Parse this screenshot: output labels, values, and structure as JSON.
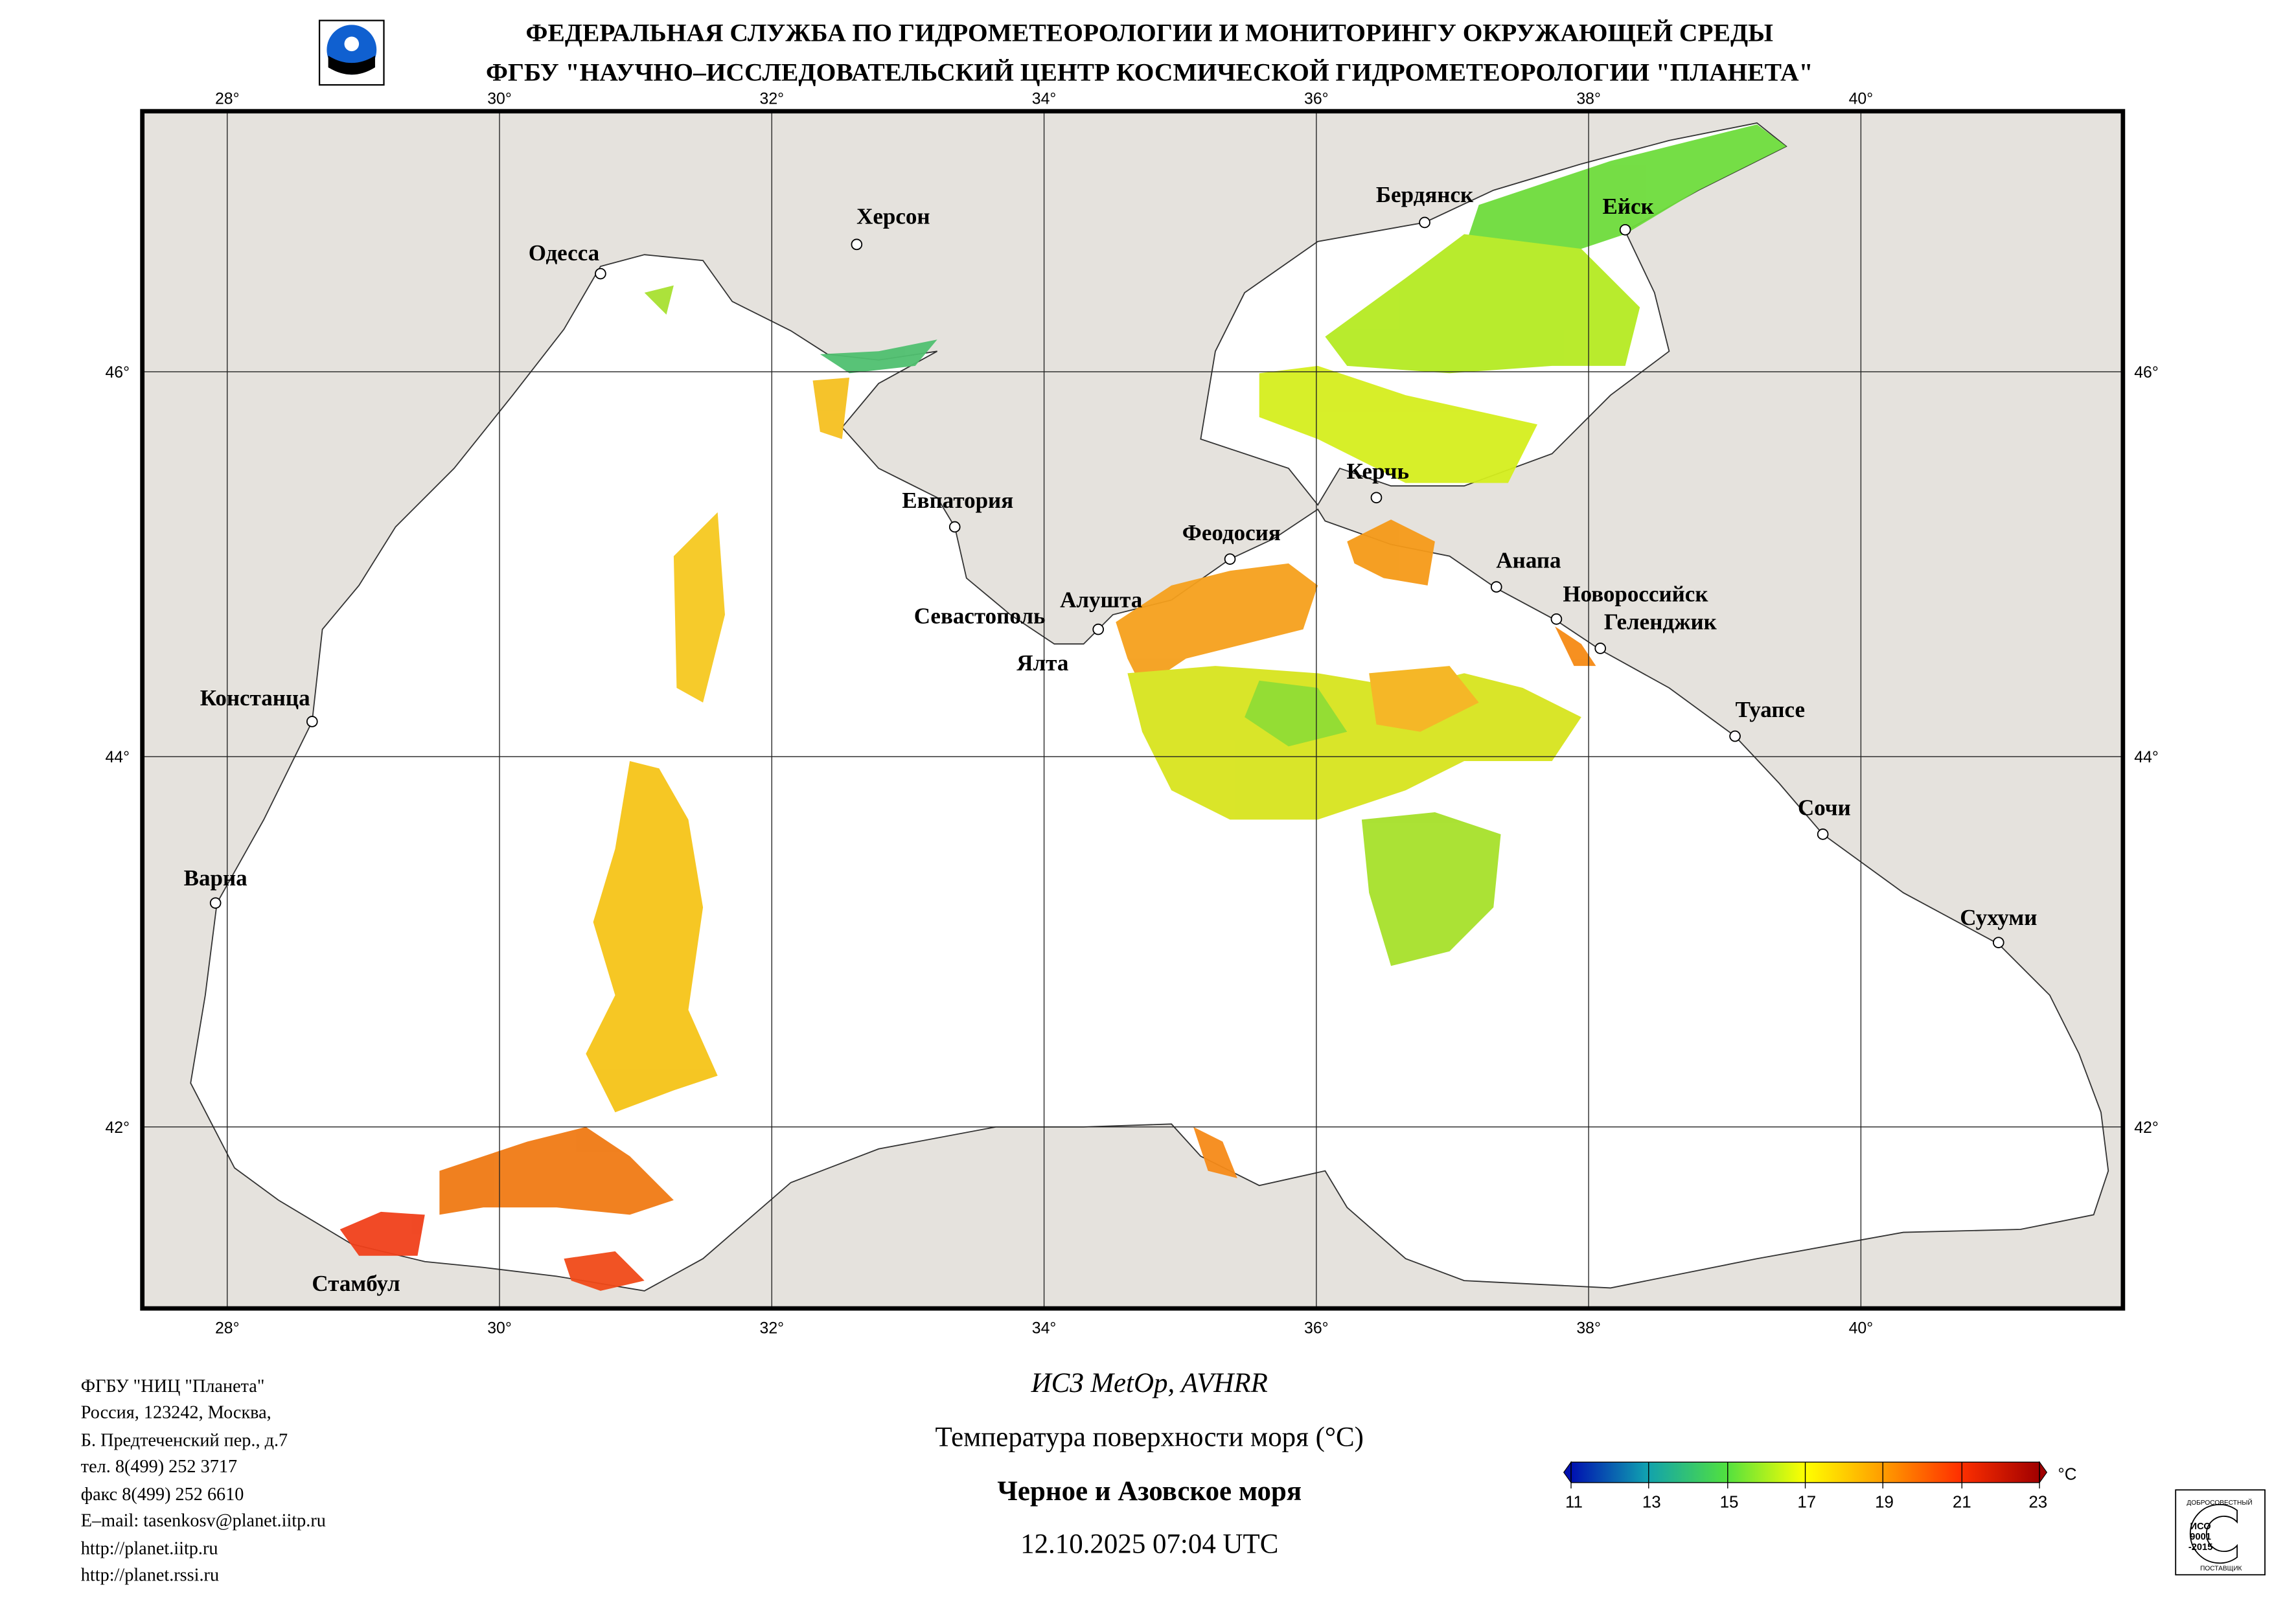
{
  "header": {
    "line1": "ФЕДЕРАЛЬНАЯ СЛУЖБА ПО ГИДРОМЕТЕОРОЛОГИИ И МОНИТОРИНГУ ОКРУЖАЮЩЕЙ СРЕДЫ",
    "line2": "ФГБУ \"НАУЧНО–ИССЛЕДОВАТЕЛЬСКИЙ ЦЕНТР КОСМИЧЕСКОЙ ГИДРОМЕТЕОРОЛОГИИ \"ПЛАНЕТА\""
  },
  "map": {
    "lon_labels": [
      "28°",
      "30°",
      "32°",
      "34°",
      "36°",
      "38°",
      "40°"
    ],
    "lat_labels": [
      "46°",
      "44°",
      "42°"
    ],
    "cities": [
      "Одесса",
      "Херсон",
      "Бердянск",
      "Ейск",
      "Евпатория",
      "Керчь",
      "Феодосия",
      "Анапа",
      "Севастополь",
      "Алушта",
      "Ялта",
      "Новороссийск",
      "Геленджик",
      "Туапсе",
      "Сочи",
      "Сухуми",
      "Констанца",
      "Варна",
      "Стамбул"
    ]
  },
  "address": [
    "ФГБУ \"НИЦ \"Планета\"",
    "Россия, 123242, Москва,",
    "Б. Предтеченский пер., д.7",
    "тел. 8(499) 252 3717",
    "факс 8(499) 252 6610",
    "E–mail: tasenkosv@planet.iitp.ru",
    "http://planet.iitp.ru",
    "http://planet.rssi.ru"
  ],
  "footer": {
    "satellite": "ИСЗ MetOp, AVHRR",
    "product": "Температура поверхности моря (°C)",
    "region": "Черное и Азовское моря",
    "datetime": "12.10.2025 07:04 UTC"
  },
  "legend": {
    "unit": "°C",
    "ticks": [
      "11",
      "13",
      "15",
      "17",
      "19",
      "21",
      "23"
    ],
    "colors": [
      "#0010b0",
      "#10a0b0",
      "#50e040",
      "#ffff00",
      "#ffa000",
      "#ff3000",
      "#a00000"
    ]
  },
  "iso_badge": {
    "top": "ДОБРОСОВЕСТНЫЙ",
    "center": [
      "ИСО",
      "9001",
      "-2015"
    ],
    "bottom": "ПОСТАВЩИК"
  }
}
